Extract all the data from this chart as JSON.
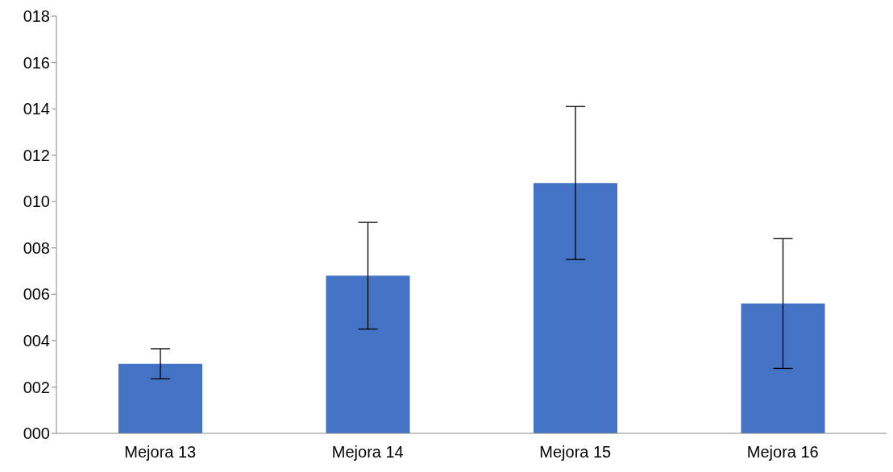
{
  "chart_data": {
    "type": "bar",
    "categories": [
      "Mejora 13",
      "Mejora 14",
      "Mejora 15",
      "Mejora 16"
    ],
    "values": [
      3.0,
      6.8,
      10.8,
      5.6
    ],
    "color": "#4472c4",
    "errors": [
      0.65,
      2.3,
      3.3,
      2.8
    ],
    "ylim": [
      0,
      18
    ],
    "yticks": [
      {
        "value": 0,
        "label": "000"
      },
      {
        "value": 2,
        "label": "002"
      },
      {
        "value": 4,
        "label": "004"
      },
      {
        "value": 6,
        "label": "006"
      },
      {
        "value": 8,
        "label": "008"
      },
      {
        "value": 10,
        "label": "010"
      },
      {
        "value": 12,
        "label": "012"
      },
      {
        "value": 14,
        "label": "014"
      },
      {
        "value": 16,
        "label": "016"
      },
      {
        "value": 18,
        "label": "018"
      }
    ],
    "grid": false,
    "legend": false
  }
}
